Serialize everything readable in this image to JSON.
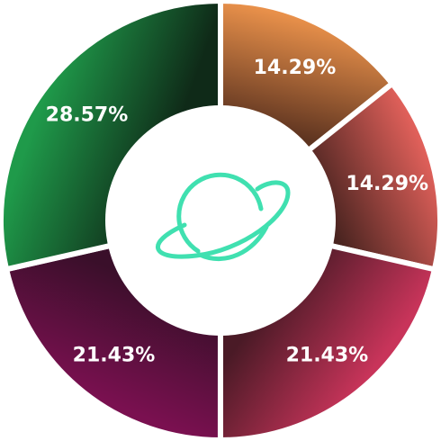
{
  "chart_data": {
    "type": "pie",
    "variant": "donut",
    "categories": [
      "",
      "",
      "",
      "",
      "",
      ""
    ],
    "values": [
      14.29,
      14.29,
      21.43,
      21.43,
      28.57,
      0
    ],
    "slices": [
      {
        "value": 14.29,
        "label": "14.29%",
        "color_start": "#e8904a",
        "color_end": "#5e3420"
      },
      {
        "value": 14.29,
        "label": "14.29%",
        "color_start": "#e0605a",
        "color_end": "#4a2420"
      },
      {
        "value": 21.43,
        "label": "21.43%",
        "color_start": "#c8345a",
        "color_end": "#4a1a26"
      },
      {
        "value": 21.43,
        "label": "21.43%",
        "color_start": "#7a1050",
        "color_end": "#3a0f2a"
      },
      {
        "value": 28.57,
        "label": "28.57%",
        "color_start": "#1f9a4a",
        "color_end": "#0f2a18"
      }
    ],
    "title": "",
    "legend": "none",
    "center_icon": "planet-icon",
    "center_icon_color": "#40e0b0"
  }
}
